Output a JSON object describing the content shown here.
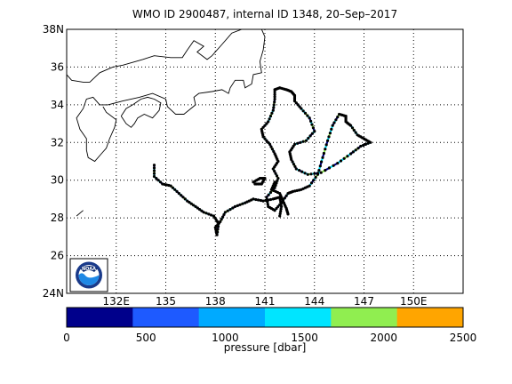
{
  "chart_data": {
    "type": "scatter",
    "title": "WMO ID 2900487, internal ID 1348, 20–Sep–2017",
    "map": {
      "lon_range": [
        129,
        153
      ],
      "lat_range": [
        24,
        38
      ],
      "lat_ticks": [
        "24N",
        "26",
        "28",
        "30",
        "32",
        "34",
        "36",
        "38N"
      ],
      "lon_ticks": [
        "132E",
        "135",
        "138",
        "141",
        "144",
        "147",
        "150E"
      ],
      "grid": true,
      "logo": "NOAA",
      "colors": {
        "coast": "#000000",
        "grid": "#000000",
        "marker_outline": "#000000"
      }
    },
    "colorbar": {
      "label": "pressure [dbar]",
      "ticks": [
        "0",
        "500",
        "1000",
        "1500",
        "2000",
        "2500"
      ],
      "range": [
        0,
        2500
      ],
      "colors": [
        "#00008b",
        "#1e5aff",
        "#00aaff",
        "#00e5ff",
        "#90ee50",
        "#ffa500"
      ]
    },
    "coastline": [
      [
        [
          130.0,
          28.4
        ],
        [
          129.6,
          28.1
        ]
      ],
      [
        [
          129.0,
          35.6
        ],
        [
          129.3,
          35.3
        ],
        [
          130.0,
          35.2
        ],
        [
          130.4,
          35.2
        ],
        [
          131.0,
          35.7
        ],
        [
          131.8,
          36.0
        ],
        [
          132.4,
          36.1
        ],
        [
          133.6,
          36.4
        ],
        [
          134.3,
          36.6
        ],
        [
          135.3,
          36.5
        ],
        [
          136.0,
          36.5
        ],
        [
          136.3,
          36.9
        ],
        [
          136.7,
          37.4
        ],
        [
          137.3,
          37.1
        ],
        [
          136.9,
          36.8
        ],
        [
          137.5,
          36.4
        ],
        [
          137.8,
          36.6
        ],
        [
          138.4,
          37.2
        ],
        [
          139.0,
          37.8
        ],
        [
          139.6,
          38.0
        ],
        [
          140.1,
          38.0
        ],
        [
          140.8,
          38.0
        ],
        [
          141.0,
          37.6
        ],
        [
          140.9,
          36.9
        ],
        [
          140.7,
          36.3
        ],
        [
          140.8,
          35.7
        ],
        [
          140.3,
          35.6
        ],
        [
          140.2,
          35.1
        ],
        [
          139.8,
          34.9
        ],
        [
          139.7,
          35.3
        ],
        [
          139.2,
          35.3
        ],
        [
          138.9,
          34.9
        ],
        [
          138.8,
          34.6
        ],
        [
          138.4,
          34.8
        ],
        [
          137.8,
          34.7
        ],
        [
          137.0,
          34.6
        ],
        [
          136.7,
          34.4
        ],
        [
          136.8,
          34.0
        ],
        [
          136.1,
          33.5
        ],
        [
          135.6,
          33.5
        ],
        [
          135.1,
          33.9
        ],
        [
          135.0,
          34.3
        ],
        [
          134.2,
          34.6
        ],
        [
          133.4,
          34.4
        ],
        [
          132.4,
          34.2
        ],
        [
          131.5,
          34.0
        ],
        [
          131.0,
          34.0
        ],
        [
          130.6,
          34.4
        ],
        [
          130.2,
          34.3
        ],
        [
          130.0,
          33.8
        ],
        [
          129.6,
          33.3
        ],
        [
          129.8,
          32.7
        ],
        [
          130.2,
          32.2
        ],
        [
          130.2,
          31.6
        ],
        [
          130.3,
          31.2
        ],
        [
          130.7,
          31.0
        ],
        [
          131.1,
          31.4
        ],
        [
          131.4,
          31.7
        ],
        [
          131.6,
          32.2
        ],
        [
          131.9,
          32.8
        ],
        [
          132.0,
          33.2
        ],
        [
          131.4,
          33.6
        ],
        [
          131.2,
          33.9
        ]
      ],
      [
        [
          132.3,
          33.4
        ],
        [
          132.6,
          33.0
        ],
        [
          132.9,
          32.8
        ],
        [
          133.1,
          33.0
        ],
        [
          133.3,
          33.3
        ],
        [
          133.7,
          33.5
        ],
        [
          134.2,
          33.3
        ],
        [
          134.6,
          33.7
        ],
        [
          134.7,
          34.1
        ],
        [
          134.3,
          34.3
        ],
        [
          133.9,
          34.4
        ],
        [
          133.5,
          34.3
        ],
        [
          133.0,
          34.0
        ],
        [
          132.6,
          33.8
        ],
        [
          132.3,
          33.4
        ]
      ]
    ],
    "track": [
      [
        141.9,
        34.9
      ],
      [
        142.3,
        34.8
      ],
      [
        142.6,
        34.7
      ],
      [
        142.8,
        34.5
      ],
      [
        142.8,
        34.2
      ],
      [
        143.2,
        33.8
      ],
      [
        143.7,
        33.3
      ],
      [
        144.0,
        32.6
      ],
      [
        143.5,
        32.1
      ],
      [
        142.8,
        31.9
      ],
      [
        142.5,
        31.5
      ],
      [
        142.6,
        31.1
      ],
      [
        142.9,
        30.6
      ],
      [
        143.6,
        30.3
      ],
      [
        144.4,
        30.4
      ],
      [
        145.4,
        30.9
      ],
      [
        146.2,
        31.4
      ],
      [
        146.8,
        31.8
      ],
      [
        147.4,
        32.0
      ],
      [
        147.0,
        32.2
      ],
      [
        146.6,
        32.4
      ],
      [
        146.2,
        32.9
      ],
      [
        145.9,
        33.1
      ],
      [
        145.9,
        33.4
      ],
      [
        145.5,
        33.5
      ],
      [
        145.1,
        32.9
      ],
      [
        144.8,
        32.1
      ],
      [
        144.5,
        31.2
      ],
      [
        144.2,
        30.3
      ],
      [
        143.7,
        29.7
      ],
      [
        143.2,
        29.5
      ],
      [
        142.7,
        29.4
      ],
      [
        142.4,
        29.3
      ],
      [
        142.0,
        28.8
      ],
      [
        141.6,
        28.4
      ],
      [
        141.2,
        28.6
      ],
      [
        141.1,
        29.1
      ],
      [
        141.6,
        29.6
      ],
      [
        141.8,
        30.1
      ],
      [
        141.5,
        30.6
      ],
      [
        141.8,
        31.0
      ],
      [
        141.6,
        31.4
      ],
      [
        141.3,
        31.9
      ],
      [
        140.9,
        32.3
      ],
      [
        140.8,
        32.7
      ],
      [
        141.2,
        33.1
      ],
      [
        141.5,
        33.7
      ],
      [
        141.6,
        34.3
      ],
      [
        141.6,
        34.8
      ],
      [
        141.9,
        34.9
      ]
    ],
    "track2": [
      [
        141.9,
        28.1
      ],
      [
        142.0,
        28.6
      ],
      [
        141.9,
        29.1
      ],
      [
        141.5,
        29.0
      ],
      [
        140.9,
        28.9
      ],
      [
        140.3,
        29.0
      ],
      [
        139.8,
        28.8
      ],
      [
        139.2,
        28.6
      ],
      [
        138.6,
        28.3
      ],
      [
        138.3,
        27.8
      ],
      [
        138.0,
        27.5
      ],
      [
        138.1,
        27.1
      ],
      [
        138.2,
        27.7
      ],
      [
        137.9,
        28.1
      ],
      [
        137.3,
        28.3
      ],
      [
        136.8,
        28.6
      ],
      [
        136.3,
        28.9
      ],
      [
        135.8,
        29.3
      ],
      [
        135.3,
        29.7
      ],
      [
        134.8,
        29.8
      ],
      [
        134.3,
        30.2
      ],
      [
        134.3,
        30.8
      ]
    ],
    "track3": [
      [
        140.3,
        29.9
      ],
      [
        140.7,
        30.1
      ],
      [
        141.0,
        30.1
      ],
      [
        140.8,
        29.8
      ],
      [
        140.4,
        29.8
      ]
    ],
    "track4": [
      [
        142.4,
        28.2
      ],
      [
        142.3,
        28.5
      ],
      [
        142.1,
        28.9
      ],
      [
        141.9,
        29.3
      ],
      [
        141.4,
        29.5
      ],
      [
        141.6,
        29.9
      ]
    ]
  }
}
